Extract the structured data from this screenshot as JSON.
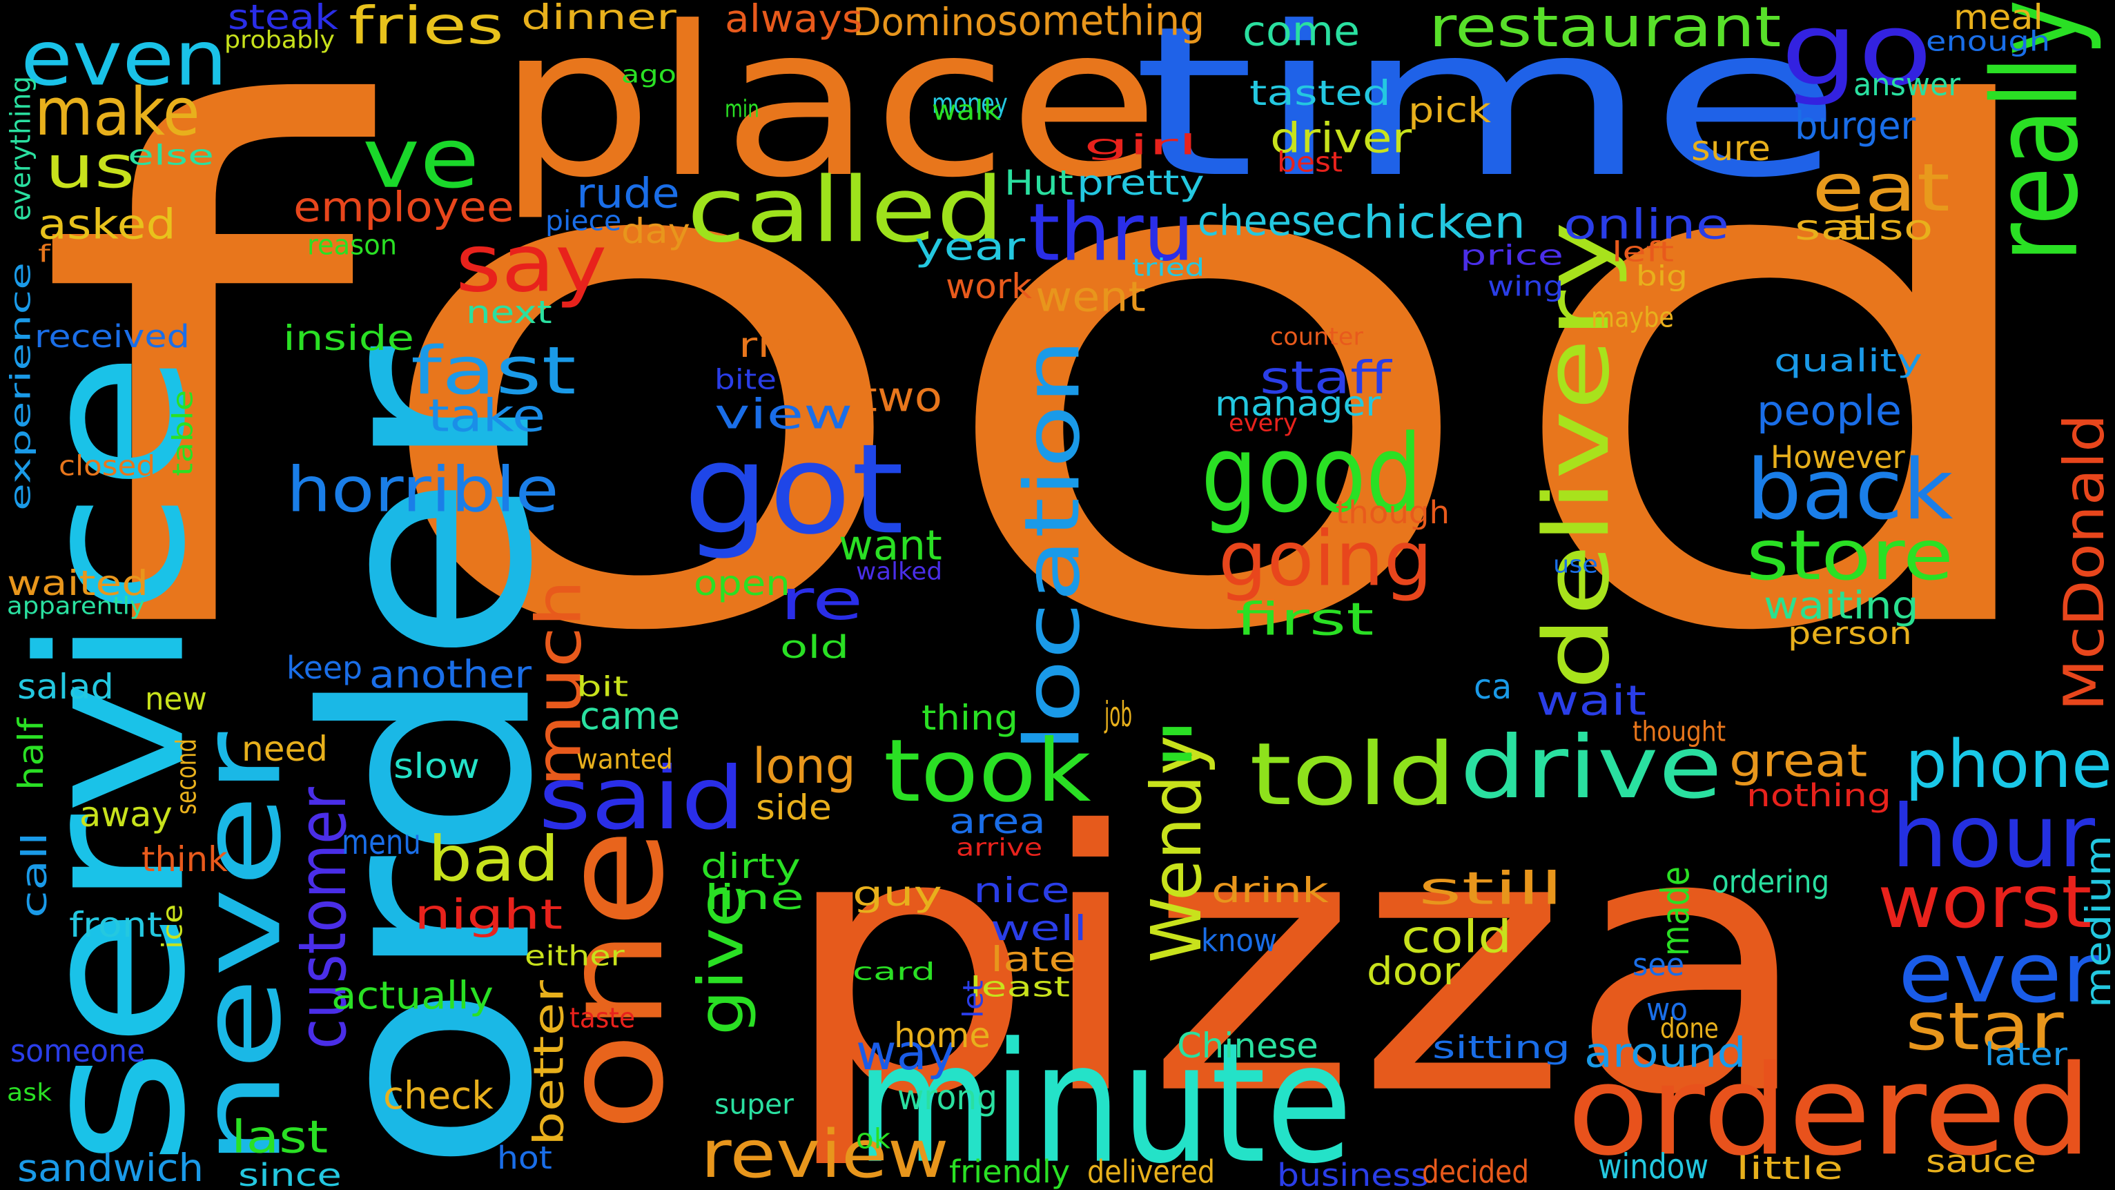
{
  "words": [
    {
      "t": "food",
      "c": "#e8761c"
    },
    {
      "t": "pizza",
      "c": "#e65a1c"
    },
    {
      "t": "time",
      "c": "#1f62e8"
    },
    {
      "t": "place",
      "c": "#e8761c"
    },
    {
      "t": "order",
      "c": "#1ab8e6"
    },
    {
      "t": "service",
      "c": "#1ac2e8"
    },
    {
      "t": "minute",
      "c": "#24e2c8"
    },
    {
      "t": "ordered",
      "c": "#e8521c"
    },
    {
      "t": "one",
      "c": "#e8641c"
    },
    {
      "t": "got",
      "c": "#1f46e8"
    },
    {
      "t": "go",
      "c": "#3322e0"
    },
    {
      "t": "restaurant",
      "c": "#58e02a"
    },
    {
      "t": "even",
      "c": "#1ac2e8"
    },
    {
      "t": "make",
      "c": "#e8b01c"
    },
    {
      "t": "us",
      "c": "#c8e21c"
    },
    {
      "t": "ve",
      "c": "#1ad82a"
    },
    {
      "t": "called",
      "c": "#9ee21c"
    },
    {
      "t": "say",
      "c": "#e8221c"
    },
    {
      "t": "eat",
      "c": "#e89a1c"
    },
    {
      "t": "thru",
      "c": "#2a2ee8"
    },
    {
      "t": "never",
      "c": "#1ab8e6"
    },
    {
      "t": "location",
      "c": "#1a9ae8"
    },
    {
      "t": "delivery",
      "c": "#a8e21c"
    },
    {
      "t": "good",
      "c": "#2ae024"
    },
    {
      "t": "going",
      "c": "#e8461c"
    },
    {
      "t": "back",
      "c": "#1a7ee8"
    },
    {
      "t": "store",
      "c": "#2ae024"
    },
    {
      "t": "took",
      "c": "#2ae024"
    },
    {
      "t": "told",
      "c": "#8ee21c"
    },
    {
      "t": "drive",
      "c": "#2ae0a0"
    },
    {
      "t": "said",
      "c": "#2a2ee8"
    },
    {
      "t": "hour",
      "c": "#2430e0"
    },
    {
      "t": "ever",
      "c": "#1a5ce8"
    },
    {
      "t": "worst",
      "c": "#e8221c"
    },
    {
      "t": "star",
      "c": "#e8961c"
    },
    {
      "t": "phone",
      "c": "#1ac8e8"
    },
    {
      "t": "review",
      "c": "#e8961c"
    },
    {
      "t": "Wendy",
      "c": "#c8e21c"
    },
    {
      "t": "much",
      "c": "#e85a1c"
    },
    {
      "t": "customer",
      "c": "#4a2ee8"
    },
    {
      "t": "horrible",
      "c": "#1a7ee8"
    },
    {
      "t": "fast",
      "c": "#1a9ae8"
    },
    {
      "t": "bad",
      "c": "#c8e21c"
    },
    {
      "t": "give",
      "c": "#2ae024"
    },
    {
      "t": "really",
      "c": "#2ae024"
    },
    {
      "t": "McDonald",
      "c": "#e8461c"
    },
    {
      "t": "fries",
      "c": "#e8c21c"
    },
    {
      "t": "re",
      "c": "#2a2ee8"
    },
    {
      "t": "staff",
      "c": "#2a3ee8"
    },
    {
      "t": "take",
      "c": "#1a8ee8"
    },
    {
      "t": "two",
      "c": "#e8761c"
    },
    {
      "t": "view",
      "c": "#1a6ee8"
    },
    {
      "t": "right",
      "c": "#e8761c"
    },
    {
      "t": "want",
      "c": "#2ae024"
    },
    {
      "t": "first",
      "c": "#2ae024"
    },
    {
      "t": "people",
      "c": "#1a6ee8"
    },
    {
      "t": "waiting",
      "c": "#2ae090"
    },
    {
      "t": "still",
      "c": "#e8961c"
    },
    {
      "t": "cold",
      "c": "#c8e21c"
    },
    {
      "t": "great",
      "c": "#e8961c"
    },
    {
      "t": "long",
      "c": "#e8961c"
    },
    {
      "t": "way",
      "c": "#1a5ce8"
    },
    {
      "t": "wait",
      "c": "#2a3ee8"
    },
    {
      "t": "went",
      "c": "#e8961c"
    },
    {
      "t": "chicken",
      "c": "#24c8e0"
    },
    {
      "t": "cheese",
      "c": "#24c8e0"
    },
    {
      "t": "online",
      "c": "#2a3ee8"
    },
    {
      "t": "employee",
      "c": "#e8461c"
    },
    {
      "t": "asked",
      "c": "#e8c21c"
    },
    {
      "t": "rude",
      "c": "#1a6ee8"
    },
    {
      "t": "driver",
      "c": "#c8e21c"
    },
    {
      "t": "manager",
      "c": "#24c8e0"
    },
    {
      "t": "burger",
      "c": "#1a6ee8"
    },
    {
      "t": "come",
      "c": "#2ae0a0"
    },
    {
      "t": "something",
      "c": "#e8961c"
    },
    {
      "t": "Domino",
      "c": "#e8961c"
    },
    {
      "t": "always",
      "c": "#e85a1c"
    },
    {
      "t": "dinner",
      "c": "#e8b01c"
    },
    {
      "t": "steak",
      "c": "#2a2ee8"
    },
    {
      "t": "meal",
      "c": "#e8b01c"
    },
    {
      "t": "answer",
      "c": "#2ae0a0"
    },
    {
      "t": "pretty",
      "c": "#24c8e0"
    },
    {
      "t": "Hut",
      "c": "#2ae0a0"
    },
    {
      "t": "tasted",
      "c": "#24c8e0"
    },
    {
      "t": "pick",
      "c": "#e8b01c"
    },
    {
      "t": "sure",
      "c": "#e8b01c"
    },
    {
      "t": "sat",
      "c": "#e8b01c"
    },
    {
      "t": "also",
      "c": "#e8b01c"
    },
    {
      "t": "year",
      "c": "#24c8e0"
    },
    {
      "t": "work",
      "c": "#e85a1c"
    },
    {
      "t": "day",
      "c": "#e8961c"
    },
    {
      "t": "next",
      "c": "#2ae0a0"
    },
    {
      "t": "inside",
      "c": "#2ae024"
    },
    {
      "t": "received",
      "c": "#1a6ee8"
    },
    {
      "t": "experience",
      "c": "#1a9ae8"
    },
    {
      "t": "waited",
      "c": "#e8961c"
    },
    {
      "t": "salad",
      "c": "#24c8e0"
    },
    {
      "t": "new",
      "c": "#c8e21c"
    },
    {
      "t": "another",
      "c": "#1a6ee8"
    },
    {
      "t": "came",
      "c": "#2ae0a0"
    },
    {
      "t": "slow",
      "c": "#24e2c8"
    },
    {
      "t": "need",
      "c": "#e8b01c"
    },
    {
      "t": "away",
      "c": "#c8e21c"
    },
    {
      "t": "keep",
      "c": "#1a6ee8"
    },
    {
      "t": "open",
      "c": "#2ae024"
    },
    {
      "t": "old",
      "c": "#2ae024"
    },
    {
      "t": "thing",
      "c": "#2ae024"
    },
    {
      "t": "side",
      "c": "#e8b01c"
    },
    {
      "t": "area",
      "c": "#1a6ee8"
    },
    {
      "t": "dirty",
      "c": "#2ae024"
    },
    {
      "t": "line",
      "c": "#2ae024"
    },
    {
      "t": "guy",
      "c": "#e8b01c"
    },
    {
      "t": "nice",
      "c": "#2a3ee8"
    },
    {
      "t": "well",
      "c": "#2a3ee8"
    },
    {
      "t": "late",
      "c": "#e8961c"
    },
    {
      "t": "drink",
      "c": "#e8961c"
    },
    {
      "t": "know",
      "c": "#1a6ee8"
    },
    {
      "t": "door",
      "c": "#c8e21c"
    },
    {
      "t": "night",
      "c": "#e8221c"
    },
    {
      "t": "actually",
      "c": "#2ae024"
    },
    {
      "t": "last",
      "c": "#2ae024"
    },
    {
      "t": "check",
      "c": "#e8b01c"
    },
    {
      "t": "better",
      "c": "#e8b01c"
    },
    {
      "t": "front",
      "c": "#24c8e0"
    },
    {
      "t": "call",
      "c": "#1a9ae8"
    },
    {
      "t": "think",
      "c": "#e85a1c"
    },
    {
      "t": "menu",
      "c": "#1a6ee8"
    },
    {
      "t": "sandwich",
      "c": "#1a9ae8"
    },
    {
      "t": "since",
      "c": "#24c8e0"
    },
    {
      "t": "hot",
      "c": "#1a6ee8"
    },
    {
      "t": "friendly",
      "c": "#2ae024"
    },
    {
      "t": "delivered",
      "c": "#e8b01c"
    },
    {
      "t": "business",
      "c": "#2a3ee8"
    },
    {
      "t": "decided",
      "c": "#e85a1c"
    },
    {
      "t": "window",
      "c": "#24c8e0"
    },
    {
      "t": "little",
      "c": "#e8b01c"
    },
    {
      "t": "sauce",
      "c": "#e8b01c"
    },
    {
      "t": "later",
      "c": "#1a9ae8"
    },
    {
      "t": "around",
      "c": "#1a9ae8"
    },
    {
      "t": "sitting",
      "c": "#1a6ee8"
    },
    {
      "t": "Chinese",
      "c": "#2ae0a0"
    },
    {
      "t": "home",
      "c": "#e8b01c"
    },
    {
      "t": "wrong",
      "c": "#2ae0a0"
    },
    {
      "t": "super",
      "c": "#2ae0a0"
    },
    {
      "t": "someone",
      "c": "#2a3ee8"
    },
    {
      "t": "ask",
      "c": "#2ae024"
    },
    {
      "t": "ordering",
      "c": "#2ae0a0"
    },
    {
      "t": "made",
      "c": "#2ae024"
    },
    {
      "t": "medium",
      "c": "#24c8e0"
    },
    {
      "t": "nothing",
      "c": "#e8221c"
    },
    {
      "t": "thought",
      "c": "#e8761c"
    },
    {
      "t": "person",
      "c": "#e8b01c"
    },
    {
      "t": "However",
      "c": "#e8b01c"
    },
    {
      "t": "quality",
      "c": "#1a9ae8"
    },
    {
      "t": "though",
      "c": "#e85a1c"
    },
    {
      "t": "counter",
      "c": "#e85a1c"
    },
    {
      "t": "maybe",
      "c": "#e8b01c"
    },
    {
      "t": "big",
      "c": "#e8b01c"
    },
    {
      "t": "left",
      "c": "#e85a1c"
    },
    {
      "t": "wing",
      "c": "#2a3ee8"
    },
    {
      "t": "price",
      "c": "#4a2ee8"
    },
    {
      "t": "tried",
      "c": "#24c8e0"
    },
    {
      "t": "best",
      "c": "#e8221c"
    },
    {
      "t": "girl",
      "c": "#e8221c"
    },
    {
      "t": "money",
      "c": "#24c8e0"
    },
    {
      "t": "walk",
      "c": "#2ae024"
    },
    {
      "t": "min",
      "c": "#2ae024"
    },
    {
      "t": "ago",
      "c": "#2ae024"
    },
    {
      "t": "probably",
      "c": "#c8e21c"
    },
    {
      "t": "enough",
      "c": "#1a6ee8"
    },
    {
      "t": "else",
      "c": "#2ae0a0"
    },
    {
      "t": "free",
      "c": "#e8761c"
    },
    {
      "t": "reason",
      "c": "#2ae024"
    },
    {
      "t": "piece",
      "c": "#1a6ee8"
    },
    {
      "t": "everything",
      "c": "#2ae0a0"
    },
    {
      "t": "closed",
      "c": "#e8761c"
    },
    {
      "t": "table",
      "c": "#2ae024"
    },
    {
      "t": "apparently",
      "c": "#2ae0a0"
    },
    {
      "t": "half",
      "c": "#2ae024"
    },
    {
      "t": "second",
      "c": "#e8b01c"
    },
    {
      "t": "ice",
      "c": "#c8e21c"
    },
    {
      "t": "bit",
      "c": "#c8e21c"
    },
    {
      "t": "wanted",
      "c": "#e8b01c"
    },
    {
      "t": "either",
      "c": "#c8e21c"
    },
    {
      "t": "taste",
      "c": "#e8221c"
    },
    {
      "t": "card",
      "c": "#2ae024"
    },
    {
      "t": "job",
      "c": "#e8b01c"
    },
    {
      "t": "ll",
      "c": "#2ae024"
    },
    {
      "t": "arrive",
      "c": "#e8221c"
    },
    {
      "t": "least",
      "c": "#c8e21c"
    },
    {
      "t": "let",
      "c": "#2a3ee8"
    },
    {
      "t": "ok",
      "c": "#2ae024"
    },
    {
      "t": "ca",
      "c": "#1a9ae8"
    },
    {
      "t": "see",
      "c": "#1a6ee8"
    },
    {
      "t": "wo",
      "c": "#1a6ee8"
    },
    {
      "t": "done",
      "c": "#e8b01c"
    },
    {
      "t": "use",
      "c": "#1a6ee8"
    },
    {
      "t": "walked",
      "c": "#4a2ee8"
    },
    {
      "t": "every",
      "c": "#e8221c"
    },
    {
      "t": "bite",
      "c": "#2a3ee8"
    }
  ]
}
